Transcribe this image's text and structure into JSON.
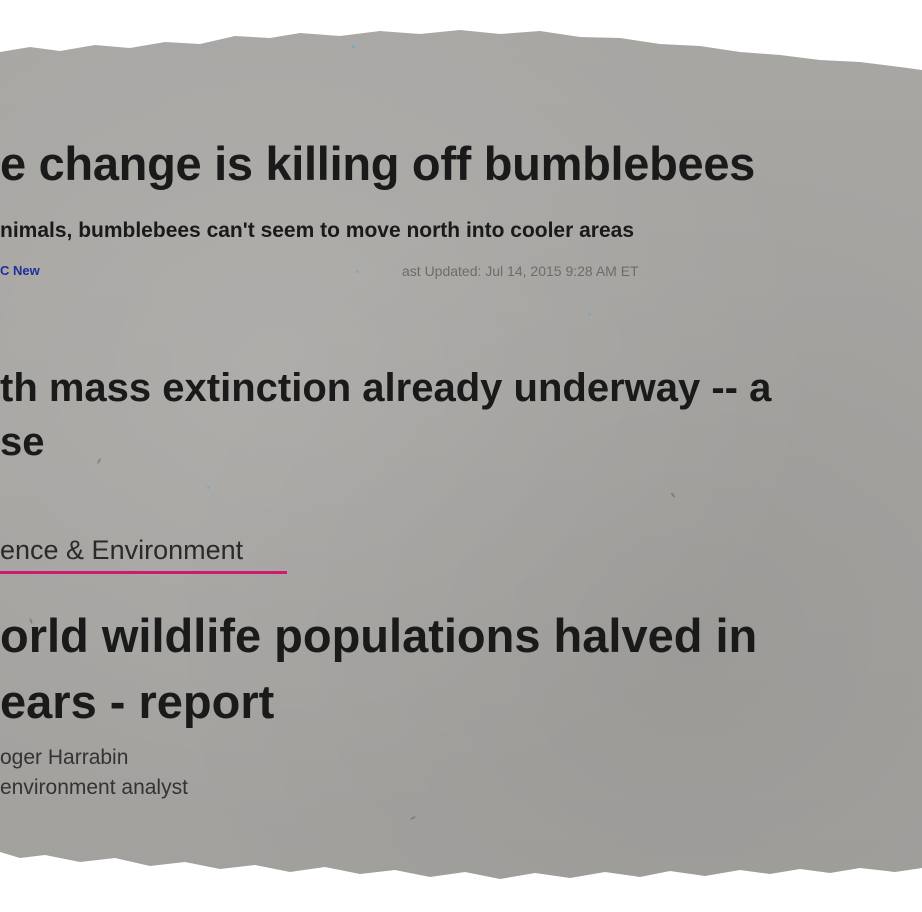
{
  "clipping": {
    "headline_1": "e change is killing off bumblebees",
    "subheadline_1": "nimals, bumblebees can't seem to move north into cooler areas",
    "source_1": "C New",
    "updated_1": "ast Updated: Jul 14, 2015 9:28 AM ET",
    "headline_2_line1": "th mass extinction already underway -- a",
    "headline_2_line2": "se",
    "section_label": "ence & Environment",
    "section_accent_color": "#d0196f",
    "headline_3_line1": "orld wildlife populations halved in",
    "headline_3_line2": "ears - report",
    "byline_name": "oger Harrabin",
    "byline_role": "environment analyst"
  }
}
